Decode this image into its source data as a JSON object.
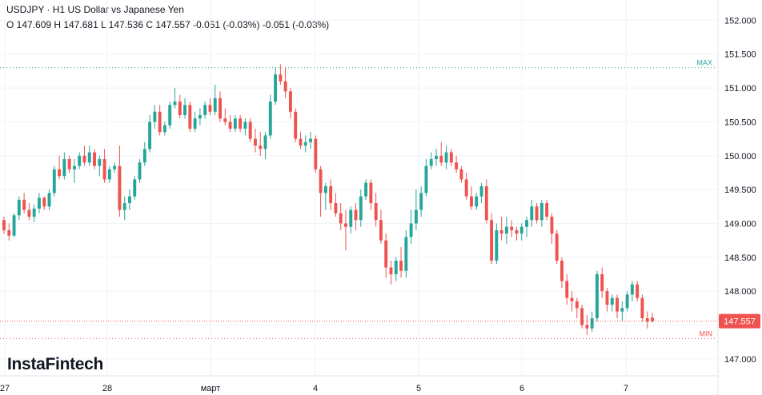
{
  "header": {
    "title": "USDJPY · H1 US Dollar vs Japanese Yen",
    "ohlc": "O 147.609 H 147.681 L 147.536 C 147.557 -0.051 (-0.03%) -0.051 (-0.03%)"
  },
  "branding": {
    "logo_text": "InstaFintech"
  },
  "colors": {
    "up": "#26a69a",
    "down": "#ef5350",
    "max_line": "#26a69a",
    "min_line": "#ef5350",
    "last_price": "#ef5350"
  },
  "chart_data": {
    "type": "candlestick",
    "ylim": [
      146.75,
      152.3
    ],
    "y_ticks": [
      "152.000",
      "151.500",
      "151.000",
      "150.500",
      "150.000",
      "149.500",
      "149.000",
      "148.500",
      "148.000",
      "147.500",
      "147.000"
    ],
    "x_ticks": [
      "27",
      "28",
      "март",
      "4",
      "5",
      "6",
      "7"
    ],
    "max_label": "MAX",
    "max_value": 151.3,
    "min_label": "MIN",
    "min_value": 147.3,
    "last_price": "147.557",
    "candles": [
      [
        149.05,
        149.1,
        148.85,
        148.9
      ],
      [
        148.9,
        149.0,
        148.75,
        148.82
      ],
      [
        148.82,
        149.15,
        148.8,
        149.12
      ],
      [
        149.12,
        149.4,
        149.05,
        149.35
      ],
      [
        149.35,
        149.45,
        149.15,
        149.2
      ],
      [
        149.2,
        149.3,
        149.05,
        149.1
      ],
      [
        149.1,
        149.28,
        149.02,
        149.22
      ],
      [
        149.22,
        149.45,
        149.15,
        149.38
      ],
      [
        149.38,
        149.4,
        149.2,
        149.25
      ],
      [
        149.25,
        149.5,
        149.2,
        149.45
      ],
      [
        149.45,
        149.85,
        149.4,
        149.8
      ],
      [
        149.8,
        150.0,
        149.65,
        149.7
      ],
      [
        149.7,
        150.05,
        149.65,
        149.95
      ],
      [
        149.95,
        150.0,
        149.75,
        149.8
      ],
      [
        149.8,
        149.95,
        149.6,
        149.85
      ],
      [
        149.85,
        150.05,
        149.8,
        150.0
      ],
      [
        150.0,
        150.15,
        149.85,
        149.9
      ],
      [
        149.9,
        150.15,
        149.85,
        150.05
      ],
      [
        150.05,
        150.1,
        149.8,
        149.85
      ],
      [
        149.85,
        150.0,
        149.7,
        149.95
      ],
      [
        149.95,
        150.1,
        149.6,
        149.65
      ],
      [
        149.65,
        149.85,
        149.6,
        149.8
      ],
      [
        149.8,
        149.9,
        149.75,
        149.85
      ],
      [
        149.85,
        150.15,
        149.1,
        149.2
      ],
      [
        149.2,
        149.4,
        149.05,
        149.3
      ],
      [
        149.3,
        149.5,
        149.2,
        149.4
      ],
      [
        149.4,
        149.7,
        149.35,
        149.65
      ],
      [
        149.65,
        149.95,
        149.6,
        149.9
      ],
      [
        149.9,
        150.2,
        149.85,
        150.1
      ],
      [
        150.1,
        150.6,
        150.05,
        150.5
      ],
      [
        150.5,
        150.75,
        150.4,
        150.65
      ],
      [
        150.65,
        150.75,
        150.3,
        150.35
      ],
      [
        150.35,
        150.5,
        150.3,
        150.45
      ],
      [
        150.45,
        150.8,
        150.4,
        150.75
      ],
      [
        150.75,
        151.0,
        150.7,
        150.8
      ],
      [
        150.8,
        150.9,
        150.55,
        150.6
      ],
      [
        150.6,
        150.85,
        150.55,
        150.75
      ],
      [
        150.75,
        150.8,
        150.35,
        150.4
      ],
      [
        150.4,
        150.65,
        150.35,
        150.55
      ],
      [
        150.55,
        150.7,
        150.45,
        150.6
      ],
      [
        150.6,
        150.8,
        150.55,
        150.75
      ],
      [
        150.75,
        150.85,
        150.6,
        150.65
      ],
      [
        150.65,
        151.05,
        150.6,
        150.85
      ],
      [
        150.85,
        150.95,
        150.5,
        150.55
      ],
      [
        150.55,
        150.7,
        150.45,
        150.5
      ],
      [
        150.5,
        150.6,
        150.35,
        150.4
      ],
      [
        150.4,
        150.6,
        150.35,
        150.55
      ],
      [
        150.55,
        150.6,
        150.35,
        150.4
      ],
      [
        150.4,
        150.55,
        150.3,
        150.5
      ],
      [
        150.5,
        150.55,
        150.2,
        150.25
      ],
      [
        150.25,
        150.4,
        150.05,
        150.15
      ],
      [
        150.15,
        150.35,
        150.0,
        150.1
      ],
      [
        150.1,
        150.35,
        149.95,
        150.3
      ],
      [
        150.3,
        150.9,
        150.25,
        150.8
      ],
      [
        150.8,
        151.3,
        150.75,
        151.2
      ],
      [
        151.2,
        151.35,
        151.05,
        151.1
      ],
      [
        151.1,
        151.3,
        150.85,
        150.95
      ],
      [
        150.95,
        151.0,
        150.55,
        150.65
      ],
      [
        150.65,
        150.7,
        150.2,
        150.25
      ],
      [
        150.25,
        150.35,
        150.1,
        150.15
      ],
      [
        150.15,
        150.3,
        150.05,
        150.2
      ],
      [
        150.2,
        150.35,
        150.1,
        150.25
      ],
      [
        150.25,
        150.3,
        149.75,
        149.8
      ],
      [
        149.8,
        149.85,
        149.1,
        149.45
      ],
      [
        149.45,
        149.6,
        149.2,
        149.55
      ],
      [
        149.55,
        149.65,
        149.2,
        149.3
      ],
      [
        149.3,
        149.45,
        149.1,
        149.15
      ],
      [
        149.15,
        149.3,
        148.9,
        149.0
      ],
      [
        149.0,
        149.2,
        148.6,
        148.95
      ],
      [
        148.95,
        149.25,
        148.85,
        149.2
      ],
      [
        149.2,
        149.3,
        148.9,
        149.05
      ],
      [
        149.05,
        149.5,
        148.95,
        149.4
      ],
      [
        149.4,
        149.65,
        149.35,
        149.6
      ],
      [
        149.6,
        149.65,
        149.2,
        149.3
      ],
      [
        149.3,
        149.45,
        148.95,
        149.05
      ],
      [
        149.05,
        149.2,
        148.7,
        148.75
      ],
      [
        148.75,
        148.85,
        148.2,
        148.35
      ],
      [
        148.35,
        148.45,
        148.1,
        148.25
      ],
      [
        148.25,
        148.5,
        148.15,
        148.45
      ],
      [
        148.45,
        148.65,
        148.2,
        148.3
      ],
      [
        148.3,
        148.9,
        148.2,
        148.8
      ],
      [
        148.8,
        149.2,
        148.7,
        149.0
      ],
      [
        149.0,
        149.5,
        148.9,
        149.2
      ],
      [
        149.2,
        149.55,
        149.1,
        149.45
      ],
      [
        149.45,
        149.95,
        149.4,
        149.85
      ],
      [
        149.85,
        150.05,
        149.8,
        149.95
      ],
      [
        149.95,
        150.1,
        149.85,
        150.0
      ],
      [
        150.0,
        150.2,
        149.85,
        149.9
      ],
      [
        149.9,
        150.15,
        149.8,
        150.05
      ],
      [
        150.05,
        150.1,
        149.85,
        149.9
      ],
      [
        149.9,
        150.0,
        149.75,
        149.8
      ],
      [
        149.8,
        149.85,
        149.6,
        149.65
      ],
      [
        149.65,
        149.75,
        149.35,
        149.4
      ],
      [
        149.4,
        149.55,
        149.2,
        149.25
      ],
      [
        149.25,
        149.45,
        149.2,
        149.4
      ],
      [
        149.4,
        149.6,
        149.3,
        149.55
      ],
      [
        149.55,
        149.65,
        149.0,
        149.05
      ],
      [
        149.05,
        149.15,
        148.4,
        148.45
      ],
      [
        148.45,
        149.0,
        148.4,
        148.9
      ],
      [
        148.9,
        149.1,
        148.75,
        148.85
      ],
      [
        148.85,
        149.1,
        148.7,
        148.95
      ],
      [
        148.95,
        149.05,
        148.8,
        148.9
      ],
      [
        148.9,
        148.95,
        148.75,
        148.85
      ],
      [
        148.85,
        149.0,
        148.75,
        148.95
      ],
      [
        148.95,
        149.1,
        148.8,
        149.05
      ],
      [
        149.05,
        149.35,
        148.95,
        149.25
      ],
      [
        149.25,
        149.3,
        149.0,
        149.05
      ],
      [
        149.05,
        149.35,
        148.95,
        149.3
      ],
      [
        149.3,
        149.35,
        149.05,
        149.1
      ],
      [
        149.1,
        149.15,
        148.7,
        148.85
      ],
      [
        148.85,
        148.9,
        148.4,
        148.45
      ],
      [
        148.45,
        148.5,
        148.05,
        148.15
      ],
      [
        148.15,
        148.25,
        147.8,
        147.9
      ],
      [
        147.9,
        148.0,
        147.7,
        147.85
      ],
      [
        147.85,
        147.9,
        147.6,
        147.75
      ],
      [
        147.75,
        147.8,
        147.45,
        147.5
      ],
      [
        147.5,
        147.65,
        147.35,
        147.45
      ],
      [
        147.45,
        147.7,
        147.4,
        147.6
      ],
      [
        147.6,
        148.3,
        147.55,
        148.25
      ],
      [
        148.25,
        148.35,
        147.9,
        148.0
      ],
      [
        148.0,
        148.05,
        147.7,
        147.8
      ],
      [
        147.8,
        147.95,
        147.7,
        147.9
      ],
      [
        147.9,
        147.95,
        147.6,
        147.7
      ],
      [
        147.7,
        147.85,
        147.55,
        147.75
      ],
      [
        147.75,
        148.0,
        147.7,
        147.95
      ],
      [
        147.95,
        148.15,
        147.85,
        148.1
      ],
      [
        148.1,
        148.15,
        147.85,
        147.9
      ],
      [
        147.9,
        147.95,
        147.55,
        147.6
      ],
      [
        147.6,
        147.7,
        147.45,
        147.55
      ],
      [
        147.609,
        147.681,
        147.536,
        147.557
      ]
    ]
  }
}
